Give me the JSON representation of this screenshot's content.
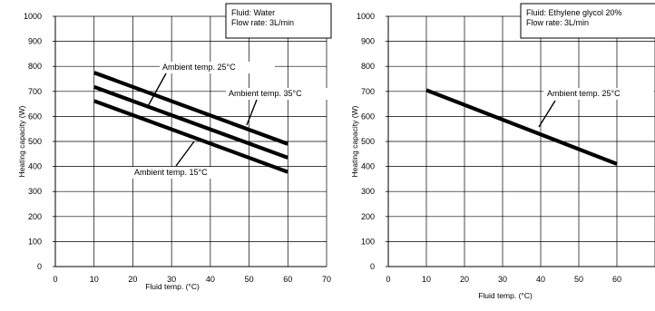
{
  "chart_data": [
    {
      "type": "line",
      "title": "",
      "xlabel": "Fluid temp. (°C)",
      "ylabel": "Heating capacity (W)",
      "xlim": [
        0,
        70
      ],
      "ylim": [
        0,
        1000
      ],
      "xticks": [
        "0",
        "10",
        "20",
        "30",
        "40",
        "50",
        "60",
        "70"
      ],
      "yticks": [
        "0",
        "100",
        "200",
        "300",
        "400",
        "500",
        "600",
        "700",
        "800",
        "900",
        "1000"
      ],
      "grid": true,
      "legend_box": {
        "position": "top-right",
        "lines": [
          "Fluid: Water",
          "Flow rate: 3L/min"
        ]
      },
      "series": [
        {
          "name": "Ambient temp. 25°C",
          "x": [
            10,
            60
          ],
          "y": [
            775,
            490
          ]
        },
        {
          "name": "Ambient temp. 35°C",
          "x": [
            10,
            60
          ],
          "y": [
            718,
            435
          ]
        },
        {
          "name": "Ambient temp. 15°C",
          "x": [
            10,
            60
          ],
          "y": [
            662,
            378
          ]
        }
      ]
    },
    {
      "type": "line",
      "title": "",
      "xlabel": "Fluid temp. (°C)",
      "ylabel": "Heating capacity (W)",
      "xlim": [
        0,
        70
      ],
      "ylim": [
        0,
        1000
      ],
      "xticks": [
        "0",
        "10",
        "20",
        "30",
        "40",
        "50",
        "60"
      ],
      "yticks": [
        "0",
        "100",
        "200",
        "300",
        "400",
        "500",
        "600",
        "700",
        "800",
        "900",
        "1000"
      ],
      "grid": true,
      "legend_box": {
        "position": "top-right",
        "lines": [
          "Fluid: Ethylene glycol 20%",
          "Flow rate: 3L/min"
        ]
      },
      "series": [
        {
          "name": "Ambient temp. 25°C",
          "x": [
            10,
            60
          ],
          "y": [
            705,
            410
          ]
        }
      ]
    }
  ]
}
